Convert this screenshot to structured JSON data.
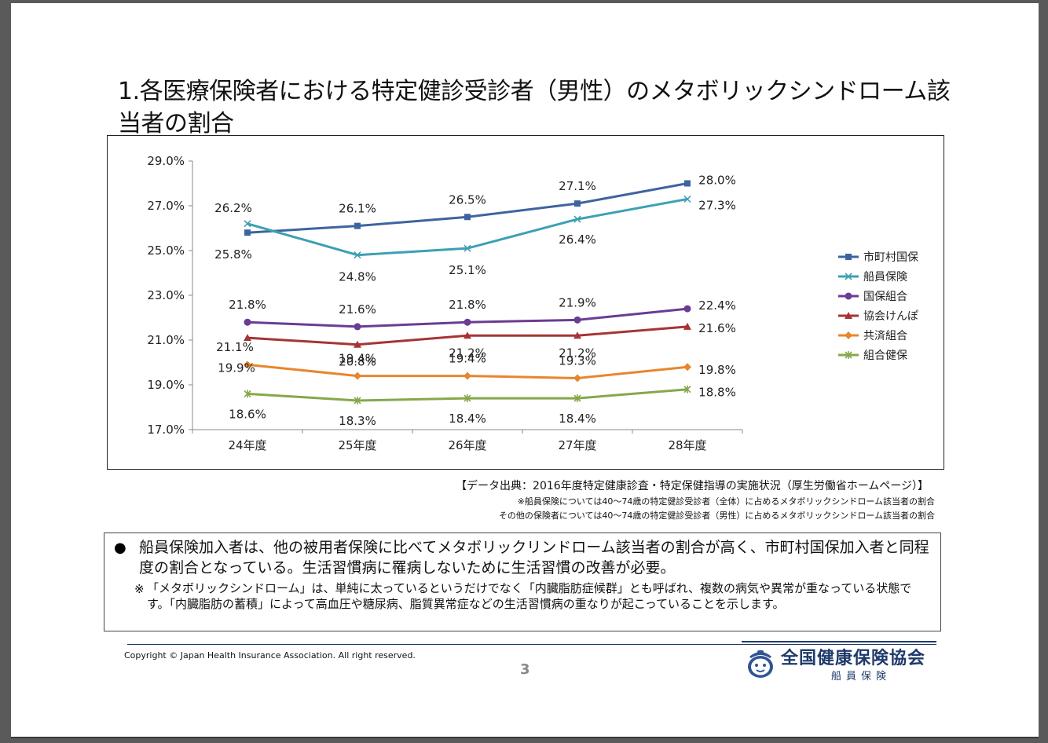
{
  "title": "1.各医療保険者における特定健診受診者（男性）のメタボリックシンドローム該当者の割合",
  "chart_data": {
    "type": "line",
    "categories": [
      "24年度",
      "25年度",
      "26年度",
      "27年度",
      "28年度"
    ],
    "ylim": [
      17.0,
      29.0
    ],
    "yticks": [
      "17.0%",
      "19.0%",
      "21.0%",
      "23.0%",
      "25.0%",
      "27.0%",
      "29.0%"
    ],
    "grid": false,
    "legend_position": "right",
    "series": [
      {
        "name": "市町村国保",
        "color": "#3e64a0",
        "marker": "square",
        "values": [
          25.8,
          26.1,
          26.5,
          27.1,
          28.0
        ],
        "labels": [
          "25.8%",
          "26.1%",
          "26.5%",
          "27.1%",
          "28.0%"
        ]
      },
      {
        "name": "船員保険",
        "color": "#3da0b4",
        "marker": "x",
        "values": [
          26.2,
          24.8,
          25.1,
          26.4,
          27.3
        ],
        "labels": [
          "26.2%",
          "24.8%",
          "25.1%",
          "26.4%",
          "27.3%"
        ]
      },
      {
        "name": "国保組合",
        "color": "#6a3c94",
        "marker": "circle",
        "values": [
          21.8,
          21.6,
          21.8,
          21.9,
          22.4
        ],
        "labels": [
          "21.8%",
          "21.6%",
          "21.8%",
          "21.9%",
          "22.4%"
        ]
      },
      {
        "name": "協会けんぽ",
        "color": "#a63434",
        "marker": "triangle",
        "values": [
          21.1,
          20.8,
          21.2,
          21.2,
          21.6
        ],
        "labels": [
          "21.1%",
          "20.8%",
          "21.2%",
          "21.2%",
          "21.6%"
        ]
      },
      {
        "name": "共済組合",
        "color": "#e8862c",
        "marker": "diamond",
        "values": [
          19.9,
          19.4,
          19.4,
          19.3,
          19.8
        ],
        "labels": [
          "19.9%",
          "19.4%",
          "19.4%",
          "19.3%",
          "19.8%"
        ]
      },
      {
        "name": "組合健保",
        "color": "#86a84a",
        "marker": "star",
        "values": [
          18.6,
          18.3,
          18.4,
          18.4,
          18.8
        ],
        "labels": [
          "18.6%",
          "18.3%",
          "18.4%",
          "18.4%",
          "18.8%"
        ]
      }
    ]
  },
  "source": "【データ出典：2016年度特定健康診査・特定保健指導の実施状況（厚生労働省ホームページ）】",
  "note1": "※船員保険については40～74歳の特定健診受診者（全体）に占めるメタボリックシンドローム該当者の割合",
  "note2": "その他の保険者については40～74歳の特定健診受診者（男性）に占めるメタボリックシンドローム該当者の割合",
  "bullet": "●",
  "bullet_text": "船員保険加入者は、他の被用者保険に比べてメタボリックリンドローム該当者の割合が高く、市町村国保加入者と同程度の割合となっている。生活習慣病に罹病しないために生活習慣の改善が必要。",
  "note_star": "※",
  "note_text": "「メタボリックシンドローム」は、単純に太っているというだけでなく「内臓脂肪症候群」とも呼ばれ、複数の病気や異常が重なっている状態です。「内臓脂肪の蓄積」によって高血圧や糖尿病、脂質異常症などの生活習慣病の重なりが起こっていることを示します。",
  "copyright": "Copyright © Japan Health Insurance Association. All right reserved.",
  "page_number": "3",
  "logo_main": "全国健康保険協会",
  "logo_sub": "船員保険"
}
